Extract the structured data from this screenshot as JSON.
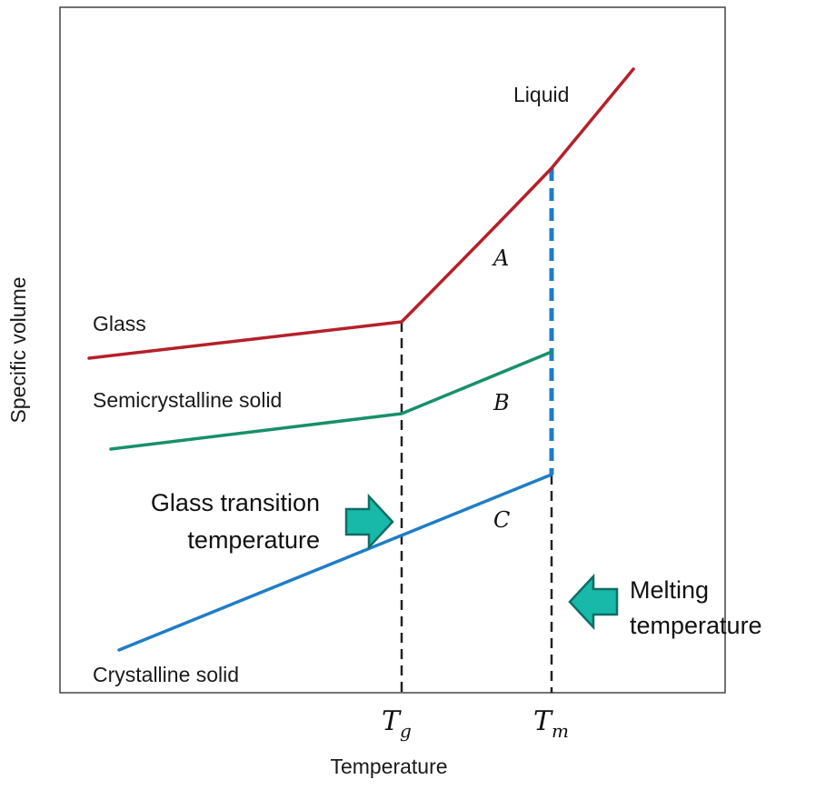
{
  "axes": {
    "xlabel": "Temperature",
    "ylabel": "Specific volume"
  },
  "ticks": {
    "tg": {
      "main": "T",
      "sub": "g"
    },
    "tm": {
      "main": "T",
      "sub": "m"
    }
  },
  "curves": {
    "liquid": {
      "label": "Liquid",
      "color": "#b5202a"
    },
    "glass": {
      "label": "Glass",
      "color": "#b5202a"
    },
    "semicrystalline": {
      "label": "Semicrystalline solid",
      "color": "#17906a"
    },
    "crystalline": {
      "label": "Crystalline solid",
      "color": "#1f7dc6"
    }
  },
  "regions": {
    "a": "A",
    "b": "B",
    "c": "C"
  },
  "annotations": {
    "glass_transition": {
      "line1": "Glass transition",
      "line2": "temperature",
      "arrow_color": "#18b9a8"
    },
    "melting": {
      "line1": "Melting",
      "line2": "temperature",
      "arrow_color": "#18b9a8"
    }
  },
  "colors": {
    "tg_line": "#222222",
    "tm_line": "#1f7dc6",
    "frame": "#444444"
  }
}
